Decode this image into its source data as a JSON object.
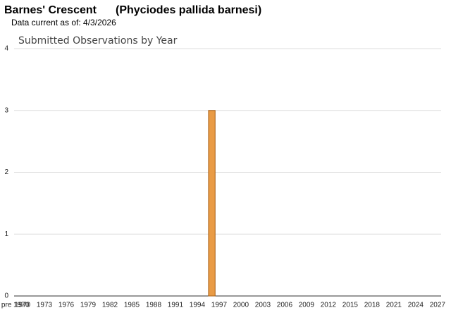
{
  "header": {
    "title": "Barnes' Crescent",
    "species": "(Phyciodes pallida barnesi)",
    "subtitle": "Data current as of: 4/3/2026"
  },
  "chart_data": {
    "type": "bar",
    "title": "Submitted Observations by Year",
    "categories": [
      "pre 1970",
      "1970",
      null,
      null,
      "1973",
      null,
      null,
      "1976",
      null,
      null,
      "1979",
      null,
      null,
      "1982",
      null,
      null,
      "1985",
      null,
      null,
      "1988",
      null,
      null,
      "1991",
      null,
      null,
      "1994",
      null,
      null,
      "1997",
      null,
      null,
      "2000",
      null,
      null,
      "2003",
      null,
      null,
      "2006",
      null,
      null,
      "2009",
      null,
      null,
      "2012",
      null,
      null,
      "2015",
      null,
      null,
      "2018",
      null,
      null,
      "2021",
      null,
      null,
      "2024",
      null,
      null,
      "2027"
    ],
    "values": [
      0,
      0,
      0,
      0,
      0,
      0,
      0,
      0,
      0,
      0,
      0,
      0,
      0,
      0,
      0,
      0,
      0,
      0,
      0,
      0,
      0,
      0,
      0,
      0,
      0,
      0,
      0,
      3,
      0,
      0,
      0,
      0,
      0,
      0,
      0,
      0,
      0,
      0,
      0,
      0,
      0,
      0,
      0,
      0,
      0,
      0,
      0,
      0,
      0,
      0,
      0,
      0,
      0,
      0,
      0,
      0,
      0,
      0,
      0
    ],
    "color": "#e99b45",
    "ylim": [
      0,
      4
    ],
    "yticks": [
      0,
      1,
      2,
      3,
      4
    ],
    "grid": true
  }
}
